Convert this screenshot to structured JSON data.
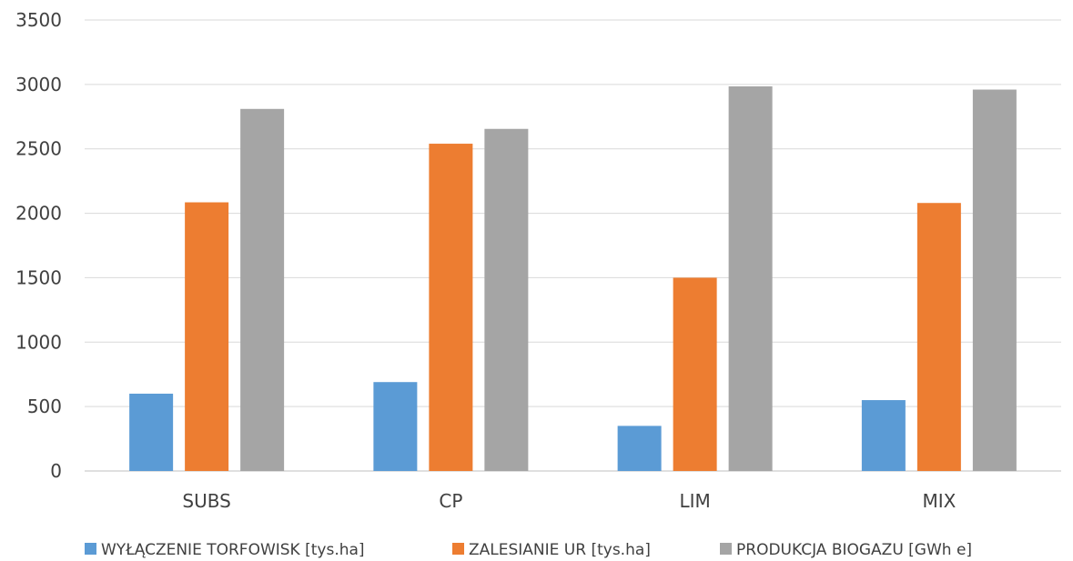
{
  "chart_data": {
    "type": "bar",
    "title": "",
    "xlabel": "",
    "ylabel": "",
    "categories": [
      "SUBS",
      "CP",
      "LIM",
      "MIX"
    ],
    "ylim": [
      0,
      3500
    ],
    "yticks": [
      0,
      500,
      1000,
      1500,
      2000,
      2500,
      3000,
      3500
    ],
    "grid": true,
    "legend_position": "bottom",
    "series": [
      {
        "name": "WYŁĄCZENIE TORFOWISK [tys.ha]",
        "color": "#5b9bd5",
        "values": [
          600,
          690,
          350,
          550
        ]
      },
      {
        "name": "ZALESIANIE UR [tys.ha]",
        "color": "#ed7d31",
        "values": [
          2085,
          2540,
          1500,
          2080
        ]
      },
      {
        "name": "PRODUKCJA BIOGAZU [GWh e]",
        "color": "#a5a5a5",
        "values": [
          2810,
          2655,
          2985,
          2960
        ]
      }
    ]
  }
}
